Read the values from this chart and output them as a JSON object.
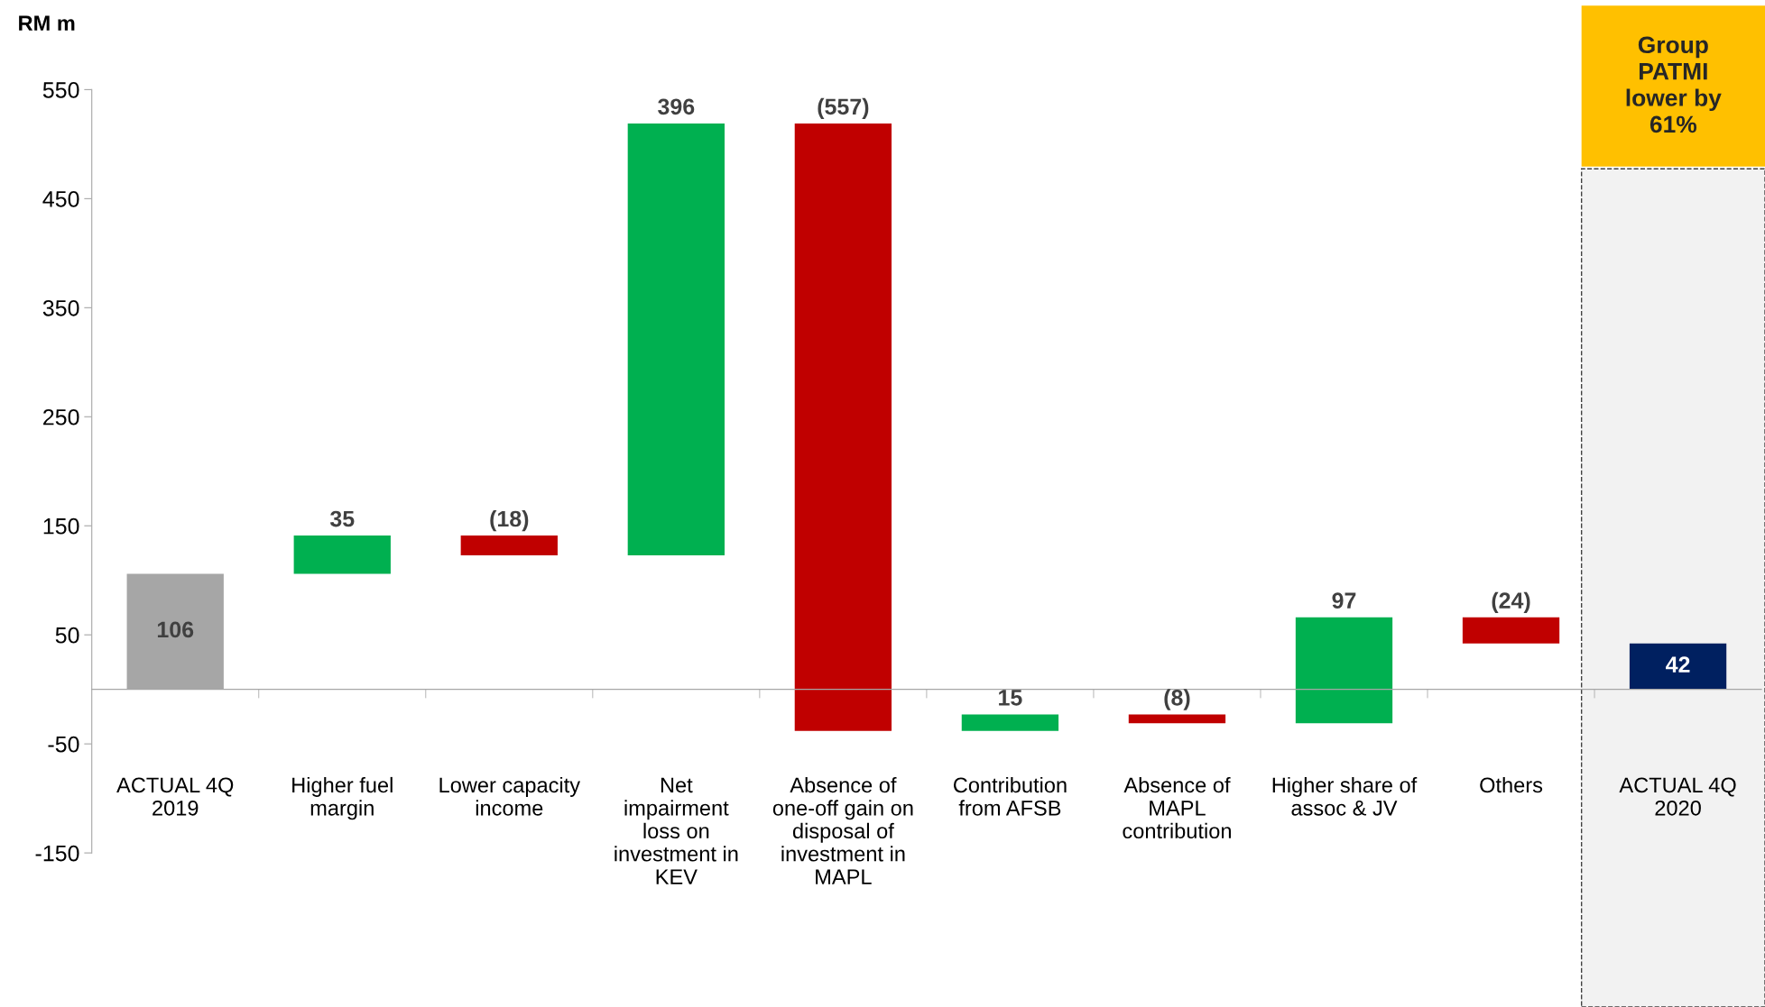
{
  "chart_data": {
    "type": "bar",
    "ylabel": "RM m",
    "categories": [
      "ACTUAL 4Q\n2019",
      "Higher fuel\nmargin",
      "Lower capacity\nincome",
      "Net\nimpairment\nloss on\ninvestment in\nKEV",
      "Absence of\none-off gain on\ndisposal of\ninvestment in\nMAPL",
      "Contribution\nfrom AFSB",
      "Absence of\nMAPL\ncontribution",
      "Higher share of\nassoc & JV",
      "Others",
      "ACTUAL 4Q\n2020"
    ],
    "values": [
      106,
      35,
      -18,
      396,
      -557,
      15,
      -8,
      97,
      -24,
      42
    ],
    "base": [
      0,
      106,
      141,
      123,
      519,
      -38,
      -23,
      -31,
      66,
      0
    ],
    "colors": [
      "#a6a6a6",
      "#00b050",
      "#c00000",
      "#00b050",
      "#c00000",
      "#00b050",
      "#c00000",
      "#00b050",
      "#c00000",
      "#002060"
    ],
    "value_labels": [
      "106",
      "35",
      "(18)",
      "396",
      "(557)",
      "15",
      "(8)",
      "97",
      "(24)",
      "42"
    ],
    "ylim": [
      -150,
      550
    ],
    "yticks": [
      -150,
      -50,
      50,
      150,
      250,
      350,
      450,
      550
    ],
    "grid": false,
    "annotations": [
      "Group\nPATMI\nlower by\n61%"
    ]
  }
}
